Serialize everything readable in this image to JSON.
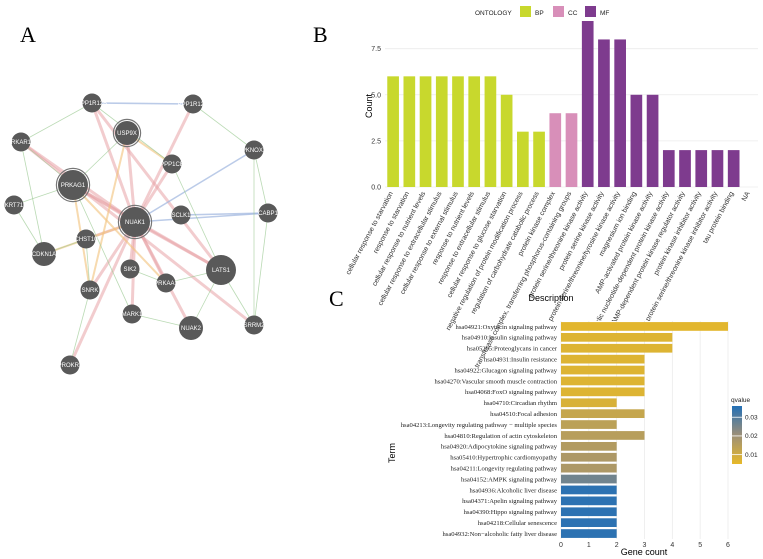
{
  "panels": {
    "a": {
      "letter": "A"
    },
    "b": {
      "letter": "B"
    },
    "c": {
      "letter": "C"
    }
  },
  "colors": {
    "bp": "#c8d82d",
    "cc": "#d88fb9",
    "mf": "#7e3b8e",
    "node": "#595959",
    "qvalue_high": "#2470b6",
    "qvalue_low": "#e7b929"
  },
  "chart_data": [
    {
      "type": "network",
      "title": "",
      "nodes": [
        {
          "id": "PPP1R12B",
          "size": 1,
          "ring": false
        },
        {
          "id": "PPP1R12C",
          "size": 1,
          "ring": false
        },
        {
          "id": "USP9X",
          "size": 2,
          "ring": true
        },
        {
          "id": "PRKAR1A",
          "size": 1,
          "ring": false
        },
        {
          "id": "PPP1CB",
          "size": 1,
          "ring": false
        },
        {
          "id": "PKNOX2",
          "size": 1,
          "ring": false
        },
        {
          "id": "PRKAG1",
          "size": 3,
          "ring": true
        },
        {
          "id": "KRT71",
          "size": 1,
          "ring": false
        },
        {
          "id": "NUAK1",
          "size": 3,
          "ring": true
        },
        {
          "id": "SCLK1",
          "size": 1,
          "ring": false
        },
        {
          "id": "CABP1",
          "size": 1,
          "ring": false
        },
        {
          "id": "CHST10",
          "size": 1,
          "ring": false
        },
        {
          "id": "CDKN1A",
          "size": 2,
          "ring": false
        },
        {
          "id": "LATS1",
          "size": 3,
          "ring": false
        },
        {
          "id": "SIK2",
          "size": 1,
          "ring": false
        },
        {
          "id": "SNRK",
          "size": 1,
          "ring": false
        },
        {
          "id": "PRKAA1",
          "size": 1,
          "ring": false
        },
        {
          "id": "MARK1",
          "size": 1,
          "ring": false
        },
        {
          "id": "SRRM2",
          "size": 1,
          "ring": false
        },
        {
          "id": "NUAK2",
          "size": 2,
          "ring": false
        },
        {
          "id": "PROKR2",
          "size": 1,
          "ring": false
        }
      ],
      "edges": [
        {
          "source": "NUAK1",
          "target": "USP9X",
          "type": "coexpression"
        },
        {
          "source": "NUAK1",
          "target": "PRKAG1",
          "type": "coexpression"
        },
        {
          "source": "NUAK1",
          "target": "LATS1",
          "type": "coexpression"
        },
        {
          "source": "NUAK1",
          "target": "PPP1R12B",
          "type": "coexpression"
        },
        {
          "source": "NUAK1",
          "target": "PPP1R12C",
          "type": "coexpression"
        },
        {
          "source": "NUAK1",
          "target": "PPP1CB",
          "type": "coexpression"
        },
        {
          "source": "NUAK1",
          "target": "PRKAR1A",
          "type": "coexpression"
        },
        {
          "source": "NUAK1",
          "target": "NUAK2",
          "type": "coexpression"
        },
        {
          "source": "NUAK1",
          "target": "PROKR2",
          "type": "coexpression"
        },
        {
          "source": "NUAK1",
          "target": "SNRK",
          "type": "coexpression"
        },
        {
          "source": "NUAK1",
          "target": "MARK1",
          "type": "coexpression"
        },
        {
          "source": "NUAK1",
          "target": "PRKAA1",
          "type": "coexpression"
        },
        {
          "source": "NUAK1",
          "target": "SIK2",
          "type": "coexpression"
        },
        {
          "source": "NUAK1",
          "target": "CHST10",
          "type": "coexpression"
        },
        {
          "source": "PRKAG1",
          "target": "LATS1",
          "type": "coexpression"
        },
        {
          "source": "PPP1R12B",
          "target": "LATS1",
          "type": "coexpression"
        },
        {
          "source": "PRKAR1A",
          "target": "SRRM2",
          "type": "coexpression"
        },
        {
          "source": "PPP1R12B",
          "target": "PPP1R12C",
          "type": "colocalization"
        },
        {
          "source": "NUAK1",
          "target": "PKNOX2",
          "type": "colocalization"
        },
        {
          "source": "NUAK1",
          "target": "CABP1",
          "type": "colocalization"
        },
        {
          "source": "SCLK1",
          "target": "CABP1",
          "type": "colocalization"
        },
        {
          "source": "PRKAG1",
          "target": "PRKAA1",
          "type": "physical"
        },
        {
          "source": "NUAK1",
          "target": "CDKN1A",
          "type": "physical"
        },
        {
          "source": "USP9X",
          "target": "PPP1CB",
          "type": "physical"
        },
        {
          "source": "USP9X",
          "target": "SNRK",
          "type": "physical"
        },
        {
          "source": "PRKAG1",
          "target": "SNRK",
          "type": "physical"
        },
        {
          "source": "PRKAR1A",
          "target": "PRKAG1",
          "type": "shared"
        },
        {
          "source": "PRKAR1A",
          "target": "CDKN1A",
          "type": "shared"
        },
        {
          "source": "KRT71",
          "target": "CDKN1A",
          "type": "shared"
        },
        {
          "source": "KRT71",
          "target": "PRKAG1",
          "type": "shared"
        },
        {
          "source": "CHST10",
          "target": "SNRK",
          "type": "shared"
        },
        {
          "source": "CDKN1A",
          "target": "CHST10",
          "type": "shared"
        },
        {
          "source": "PKNOX2",
          "target": "SRRM2",
          "type": "shared"
        },
        {
          "source": "CABP1",
          "target": "SRRM2",
          "type": "shared"
        },
        {
          "source": "LATS1",
          "target": "SRRM2",
          "type": "shared"
        },
        {
          "source": "MARK1",
          "target": "NUAK2",
          "type": "shared"
        },
        {
          "source": "SIK2",
          "target": "PRKAA1",
          "type": "shared"
        },
        {
          "source": "SNRK",
          "target": "PROKR2",
          "type": "shared"
        },
        {
          "source": "PPP1R12C",
          "target": "PKNOX2",
          "type": "shared"
        },
        {
          "source": "PPP1R12B",
          "target": "PPP1CB",
          "type": "shared"
        },
        {
          "source": "USP9X",
          "target": "PRKAG1",
          "type": "shared"
        },
        {
          "source": "PPP1CB",
          "target": "LATS1",
          "type": "shared"
        },
        {
          "source": "PRKAA1",
          "target": "LATS1",
          "type": "shared"
        },
        {
          "source": "NUAK2",
          "target": "LATS1",
          "type": "shared"
        },
        {
          "source": "PRKAR1A",
          "target": "PPP1R12B",
          "type": "shared"
        },
        {
          "source": "PRKAG1",
          "target": "MARK1",
          "type": "shared"
        },
        {
          "source": "CABP1",
          "target": "PKNOX2",
          "type": "shared"
        }
      ]
    },
    {
      "type": "bar",
      "legend_title": "ONTOLOGY",
      "legend": [
        "BP",
        "CC",
        "MF"
      ],
      "xlabel": "Description",
      "ylabel": "Count",
      "ylim": [
        0,
        9
      ],
      "yticks": [
        0.0,
        2.5,
        5.0,
        7.5
      ],
      "ytick_labels": [
        "0.0",
        "2.5",
        "5.0",
        "7.5"
      ],
      "categories": [
        "cellular response to starvation",
        "response to starvation",
        "cellular response to nutrient levels",
        "cellular response to extracellular stimulus",
        "cellular response to external stimulus",
        "response to nutrient levels",
        "response to extracellular stimulus",
        "cellular response to glucose starvation",
        "negative regulation of protein modification process",
        "regulation of carbohydrate catabolic process",
        "protein kinase complex",
        "transferase complex, transferring phosphorus-containing groups",
        "protein serine/threonine kinase activity",
        "protein serine kinase activity",
        "protein serine/threonine/tyrosine kinase activity",
        "magnesium ion binding",
        "AMP-activated protein kinase activity",
        "cyclic nucleotide-dependent protein kinase activity",
        "cAMP-dependent protein kinase regulator activity",
        "protein kinase inhibitor activity",
        "protein serine/threonine kinase inhibitor activity",
        "tau protein binding",
        "NA"
      ],
      "values": [
        6,
        6,
        6,
        6,
        6,
        6,
        6,
        5,
        3,
        3,
        4,
        4,
        9,
        8,
        8,
        5,
        5,
        2,
        2,
        2,
        2,
        2,
        0
      ],
      "ontology": [
        "BP",
        "BP",
        "BP",
        "BP",
        "BP",
        "BP",
        "BP",
        "BP",
        "BP",
        "BP",
        "CC",
        "CC",
        "MF",
        "MF",
        "MF",
        "MF",
        "MF",
        "MF",
        "MF",
        "MF",
        "MF",
        "MF",
        "MF"
      ]
    },
    {
      "type": "bar",
      "orientation": "horizontal",
      "xlabel": "Gene count",
      "ylabel": "Term",
      "xlim": [
        0,
        6
      ],
      "xticks": [
        0,
        1,
        2,
        3,
        4,
        5,
        6
      ],
      "xtick_labels": [
        "0",
        "1",
        "2",
        "3",
        "4",
        "5",
        "6"
      ],
      "legend_title": "qvalue",
      "color_scale": {
        "min": 0.005,
        "max": 0.036
      },
      "colorbar_ticks": [
        0.01,
        0.02,
        0.03
      ],
      "colorbar_labels": [
        "0.01",
        "0.02",
        "0.03"
      ],
      "terms": [
        "hsa04921:Oxytocin signaling pathway",
        "hsa04910:Insulin signaling pathway",
        "hsa05205:Proteoglycans in cancer",
        "hsa04931:Insulin resistance",
        "hsa04922:Glucagon signaling pathway",
        "hsa04270:Vascular smooth muscle contraction",
        "hsa04068:FoxO signaling pathway",
        "hsa04710:Circadian rhythm",
        "hsa04510:Focal adhesion",
        "hsa04213:Longevity regulating pathway − multiple species",
        "hsa04810:Regulation of actin cytoskeleton",
        "hsa04920:Adipocytokine signaling pathway",
        "hsa05410:Hypertrophic cardiomyopathy",
        "hsa04211:Longevity regulating pathway",
        "hsa04152:AMPK signaling pathway",
        "hsa04936:Alcoholic liver disease",
        "hsa04371:Apelin signaling pathway",
        "hsa04390:Hippo signaling pathway",
        "hsa04218:Cellular senescence",
        "hsa04932:Non−alcoholic fatty liver disease"
      ],
      "counts": [
        6,
        4,
        4,
        3,
        3,
        3,
        3,
        2,
        3,
        2,
        3,
        2,
        2,
        2,
        2,
        2,
        2,
        2,
        2,
        2
      ],
      "qvalues": [
        0.006,
        0.007,
        0.007,
        0.007,
        0.007,
        0.007,
        0.007,
        0.008,
        0.012,
        0.014,
        0.015,
        0.016,
        0.017,
        0.017,
        0.026,
        0.035,
        0.035,
        0.035,
        0.035,
        0.035
      ]
    }
  ]
}
